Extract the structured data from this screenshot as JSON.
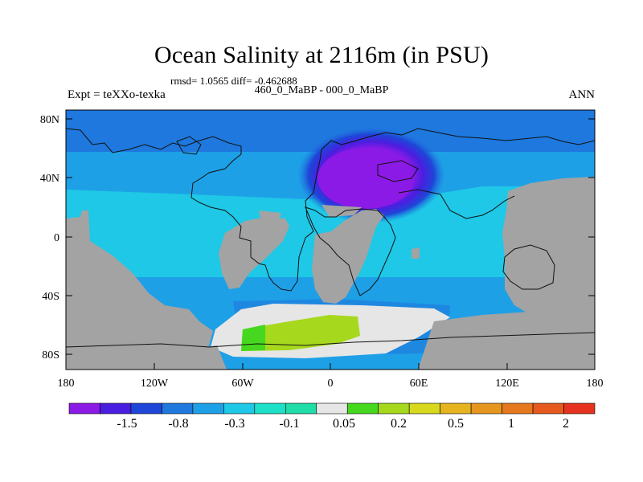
{
  "title": "Ocean Salinity at 2116m (in PSU)",
  "stats": "rmsd= 1.0565 diff= -0.462688",
  "experiment": "Expt = teXXo-texka",
  "comparison": "460_0_MaBP - 000_0_MaBP",
  "season": "ANN",
  "map": {
    "lon_ticks": [
      "180",
      "120W",
      "60W",
      "0",
      "60E",
      "120E",
      "180"
    ],
    "lat_ticks": [
      "80N",
      "40N",
      "0",
      "40S",
      "80S"
    ],
    "land_color": "#a3a3a3",
    "coastline_color": "#111111"
  },
  "colorbar": {
    "colors": [
      "#8c1ae6",
      "#4a1ee0",
      "#1e46d8",
      "#1e78de",
      "#1ea0e6",
      "#1ec8e6",
      "#1ee0c8",
      "#20dca6",
      "#e6e6e6",
      "#46d81e",
      "#a6d81e",
      "#d8d81e",
      "#e6b41e",
      "#e6961e",
      "#e6781e",
      "#e65a1e",
      "#e6321e"
    ],
    "labels": [
      "-1.5",
      "-0.8",
      "-0.3",
      "-0.1",
      "0.05",
      "0.2",
      "0.5",
      "1",
      "2"
    ]
  }
}
